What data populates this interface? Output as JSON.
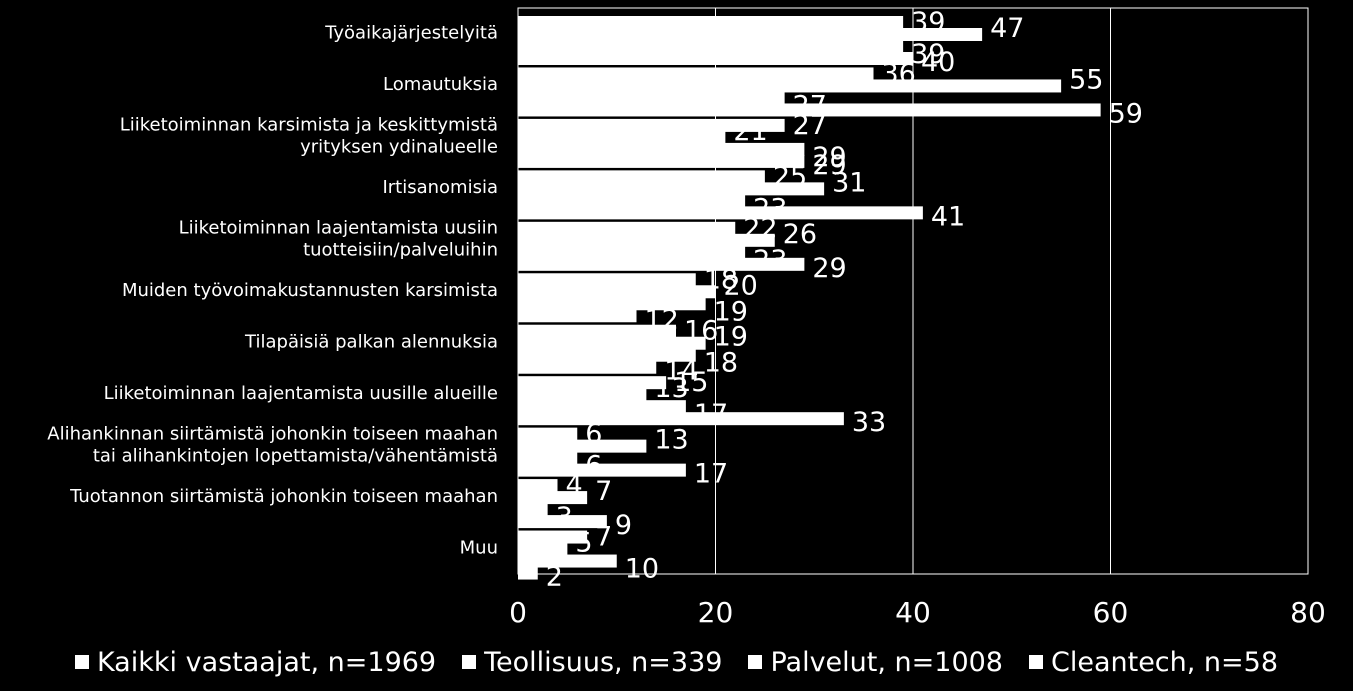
{
  "chart_data": {
    "type": "bar",
    "orientation": "horizontal",
    "categories": [
      "Työaikajärjestelyitä",
      "Lomautuksia",
      "Liiketoiminnan karsimista ja keskittymistä\nyrityksen ydinalueelle",
      "Irtisanomisia",
      "Liiketoiminnan laajentamista uusiin\ntuotteisiin/palveluihin",
      "Muiden työvoimakustannusten karsimista",
      "Tilapäisiä palkan alennuksia",
      "Liiketoiminnan laajentamista uusille alueille",
      "Alihankinnan siirtämistä johonkin toiseen maahan\ntai alihankintojen lopettamista/vähentämistä",
      "Tuotannon siirtämistä johonkin toiseen maahan",
      "Muu"
    ],
    "series": [
      {
        "name": "Kaikki vastaajat, n=1969",
        "values": [
          39,
          36,
          27,
          25,
          22,
          18,
          16,
          15,
          6,
          4,
          7
        ]
      },
      {
        "name": "Teollisuus, n=339",
        "values": [
          47,
          55,
          21,
          31,
          26,
          20,
          19,
          13,
          13,
          7,
          5
        ]
      },
      {
        "name": "Palvelut, n=1008",
        "values": [
          39,
          27,
          29,
          23,
          23,
          19,
          18,
          17,
          6,
          3,
          10
        ]
      },
      {
        "name": "Cleantech, n=58",
        "values": [
          40,
          59,
          29,
          41,
          29,
          12,
          14,
          33,
          17,
          9,
          2
        ]
      }
    ],
    "xlim": [
      0,
      80
    ],
    "xticks": [
      "0",
      "20",
      "40",
      "60",
      "80"
    ],
    "grid": true,
    "legend_position": "bottom",
    "colors": {
      "background": "#000000",
      "bars": "#ffffff",
      "grid": "#ffffff",
      "text": "#ffffff"
    }
  }
}
